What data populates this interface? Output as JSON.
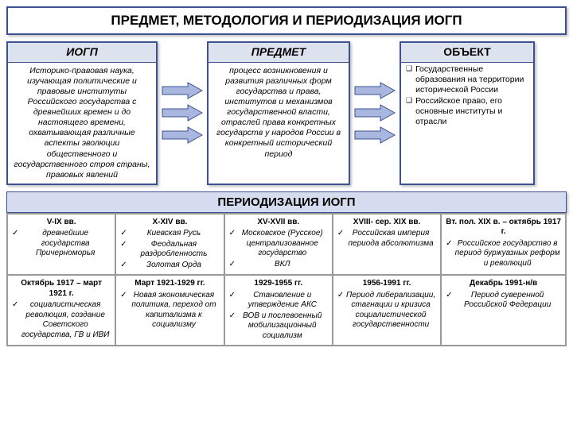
{
  "colors": {
    "border": "#3d508f",
    "header_bg": "#dde2ef",
    "arrow_fill": "#a8b6e0",
    "arrow_stroke": "#3d508f"
  },
  "title": "ПРЕДМЕТ, МЕТОДОЛОГИЯ И ПЕРИОДИЗАЦИЯ ИОГП",
  "iogp": {
    "header": "ИОГП",
    "text": "Историко-правовая наука, изучающая политические и правовые институты Российского государства с древнейших времен и до настоящего времени, охватывающая различные аспекты эволюции общественного и государственного строя страны, правовых явлений"
  },
  "predmet": {
    "header": "ПРЕДМЕТ",
    "text": "процесс возникновения и развития различных форм государства и права, институтов и механизмов государственной власти, отраслей права конкретных государств у народов России в конкретный исторический период"
  },
  "object": {
    "header": "ОБЪЕКТ",
    "items": [
      "Государственные образования на территории исторической России",
      "Российское право, его основные институты и отрасли"
    ]
  },
  "period_header": "ПЕРИОДИЗАЦИЯ ИОГП",
  "periods_row1": [
    {
      "h": "V-IX вв.",
      "items": [
        "древнейшие государства Причерноморья"
      ]
    },
    {
      "h": "X-XIV вв.",
      "items": [
        "Киевская Русь",
        "Феодальная раздробленность",
        "Золотая Орда"
      ]
    },
    {
      "h": "XV-XVII вв.",
      "items": [
        "Московское (Русское) централизованное государство",
        "ВКЛ"
      ]
    },
    {
      "h": "XVIII- сер. XIX вв.",
      "items": [
        "Российская империя периода абсолютизма"
      ]
    },
    {
      "h": "Вт. пол. XIX в. – октябрь 1917 г.",
      "items": [
        "Российское государство в период буржуазных реформ и революций"
      ]
    }
  ],
  "periods_row2": [
    {
      "h": "Октябрь 1917 – март 1921 г.",
      "items": [
        "социалистическая революция, создание Советского государства, ГВ и ИВИ"
      ]
    },
    {
      "h": "Март 1921-1929 гг.",
      "items": [
        "Новая экономическая политика, переход от капитализма к социализму"
      ]
    },
    {
      "h": "1929-1955 гг.",
      "items": [
        "Становление и утверждение АКС",
        "ВОВ и послевоенный мобилизационный социализм"
      ]
    },
    {
      "h": "1956-1991 гг.",
      "items": [
        "Период либерализации, стагнации и кризиса социалистической государственности"
      ]
    },
    {
      "h": "Декабрь 1991-н/в",
      "items": [
        "Период суверенной Российской Федерации"
      ]
    }
  ]
}
